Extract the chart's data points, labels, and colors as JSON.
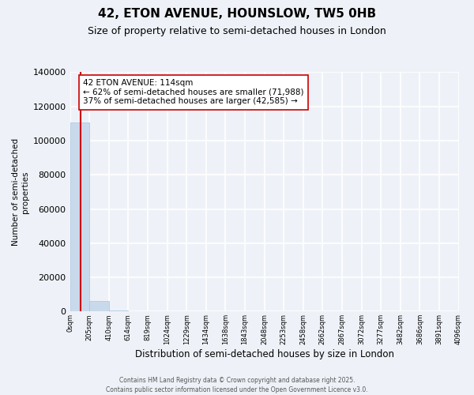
{
  "title": "42, ETON AVENUE, HOUNSLOW, TW5 0HB",
  "subtitle": "Size of property relative to semi-detached houses in London",
  "xlabel": "Distribution of semi-detached houses by size in London",
  "ylabel": "Number of semi-detached\nproperties",
  "bar_values": [
    110500,
    6200,
    800,
    200,
    100,
    60,
    40,
    30,
    20,
    15,
    10,
    8,
    6,
    5,
    4,
    3,
    3,
    2,
    2,
    1
  ],
  "bar_color": "#c9d9ec",
  "bar_edge_color": "#a8c4de",
  "x_tick_labels": [
    "0sqm",
    "205sqm",
    "410sqm",
    "614sqm",
    "819sqm",
    "1024sqm",
    "1229sqm",
    "1434sqm",
    "1638sqm",
    "1843sqm",
    "2048sqm",
    "2253sqm",
    "2458sqm",
    "2662sqm",
    "2867sqm",
    "3072sqm",
    "3277sqm",
    "3482sqm",
    "3686sqm",
    "3891sqm",
    "4096sqm"
  ],
  "ylim": [
    0,
    140000
  ],
  "yticks": [
    0,
    20000,
    40000,
    60000,
    80000,
    100000,
    120000,
    140000
  ],
  "property_bin": 0.556,
  "red_line_color": "#cc0000",
  "annotation_text": "42 ETON AVENUE: 114sqm\n← 62% of semi-detached houses are smaller (71,988)\n37% of semi-detached houses are larger (42,585) →",
  "annotation_box_color": "white",
  "annotation_border_color": "#cc0000",
  "footer_text": "Contains HM Land Registry data © Crown copyright and database right 2025.\nContains public sector information licensed under the Open Government Licence v3.0.",
  "background_color": "#eef2f8",
  "grid_color": "white",
  "title_fontsize": 11,
  "subtitle_fontsize": 9,
  "num_bins": 20
}
